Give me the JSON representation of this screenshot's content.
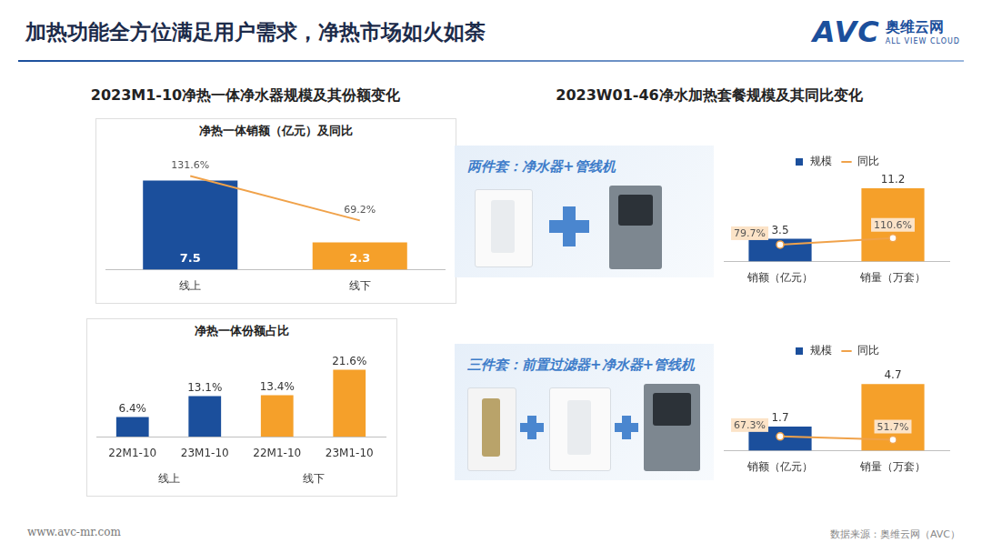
{
  "page": {
    "title": "加热功能全方位满足用户需求，净热市场如火如荼",
    "logo": {
      "mark": "AVC",
      "name": "奥维云网",
      "tagline": "ALL VIEW CLOUD"
    },
    "sections": [
      "2023M1-10净热一体净水器规模及其份额变化",
      "2023W01-46净水加热套餐规模及其同比变化"
    ],
    "url": "www.avc-mr.com",
    "source": "数据来源：奥维云网（AVC）"
  },
  "chart_data": [
    {
      "type": "bar",
      "title": "净热一体销额（亿元）及同比",
      "categories": [
        "线上",
        "线下"
      ],
      "series": [
        {
          "type": "bar",
          "colors": [
            "#1b4f9c",
            "#f5a02a"
          ],
          "values": [
            7.5,
            2.3
          ]
        },
        {
          "type": "line",
          "axis": "y2",
          "color": "#f0a24a",
          "marker": "none",
          "values": [
            131.6,
            69.2
          ],
          "value_labels": [
            "131.6%",
            "69.2%"
          ]
        }
      ],
      "ylim": [
        0,
        9
      ],
      "y2lim": [
        0,
        150
      ],
      "grid": false,
      "data_labels": true,
      "tick_labels": "x"
    },
    {
      "type": "bar",
      "title": "净热一体份额占比",
      "groups": [
        {
          "label": "线上",
          "categories": [
            "22M1-10",
            "23M1-10"
          ]
        },
        {
          "label": "线下",
          "categories": [
            "22M1-10",
            "23M1-10"
          ]
        }
      ],
      "series": [
        {
          "type": "bar",
          "colors": [
            "#1b4f9c",
            "#1b4f9c",
            "#f5a02a",
            "#f5a02a"
          ],
          "values": [
            6.4,
            13.1,
            13.4,
            21.6
          ],
          "value_labels": [
            "6.4%",
            "13.1%",
            "13.4%",
            "21.6%"
          ]
        }
      ],
      "ylim": [
        0,
        25
      ],
      "grid": false,
      "data_labels": true,
      "tick_labels": "x"
    },
    {
      "type": "bar",
      "title": "两件套：净水器+管线机",
      "categories": [
        "销额（亿元）",
        "销量（万套）"
      ],
      "legend": "top",
      "series": [
        {
          "name": "规模",
          "type": "bar",
          "color": "#1b4f9c",
          "colors": [
            "#1b4f9c",
            "#f5a02a"
          ],
          "values": [
            3.5,
            11.2
          ]
        },
        {
          "name": "同比",
          "type": "line",
          "axis": "y2",
          "color": "#f0a24a",
          "marker": "circle",
          "values": [
            79.7,
            110.6
          ],
          "value_labels": [
            "79.7%",
            "110.6%"
          ]
        }
      ],
      "ylim": [
        0,
        13
      ],
      "y2lim": [
        0,
        400
      ],
      "grid": false,
      "data_labels": true,
      "tick_labels": "x"
    },
    {
      "type": "bar",
      "title": "三件套：前置过滤器+净水器+管线机",
      "categories": [
        "销额（亿元）",
        "销量（万套）"
      ],
      "legend": "top",
      "series": [
        {
          "name": "规模",
          "type": "bar",
          "color": "#1b4f9c",
          "colors": [
            "#1b4f9c",
            "#f5a02a"
          ],
          "values": [
            1.7,
            4.7
          ]
        },
        {
          "name": "同比",
          "type": "line",
          "axis": "y2",
          "color": "#f0a24a",
          "marker": "circle",
          "values": [
            67.3,
            51.7
          ],
          "value_labels": [
            "67.3%",
            "51.7%"
          ]
        }
      ],
      "ylim": [
        0,
        6
      ],
      "y2lim": [
        0,
        400
      ],
      "grid": false,
      "data_labels": true,
      "tick_labels": "x"
    }
  ]
}
